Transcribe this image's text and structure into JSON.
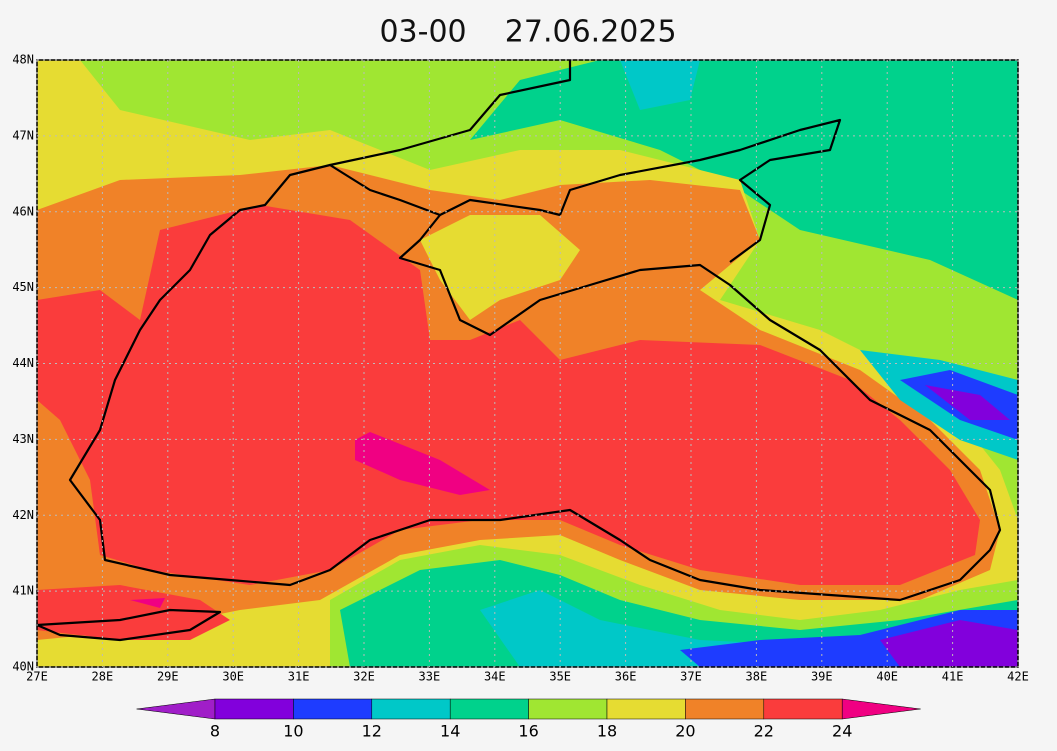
{
  "title": "03-00    27.06.2025",
  "map": {
    "xlim": [
      27,
      42
    ],
    "ylim": [
      40,
      48
    ],
    "xticks": [
      {
        "value": 27,
        "label": "27E"
      },
      {
        "value": 28,
        "label": "28E"
      },
      {
        "value": 29,
        "label": "29E"
      },
      {
        "value": 30,
        "label": "30E"
      },
      {
        "value": 31,
        "label": "31E"
      },
      {
        "value": 32,
        "label": "32E"
      },
      {
        "value": 33,
        "label": "33E"
      },
      {
        "value": 34,
        "label": "34E"
      },
      {
        "value": 35,
        "label": "35E"
      },
      {
        "value": 36,
        "label": "36E"
      },
      {
        "value": 37,
        "label": "37E"
      },
      {
        "value": 38,
        "label": "38E"
      },
      {
        "value": 39,
        "label": "39E"
      },
      {
        "value": 40,
        "label": "40E"
      },
      {
        "value": 41,
        "label": "41E"
      },
      {
        "value": 42,
        "label": "42E"
      }
    ],
    "yticks": [
      {
        "value": 40,
        "label": "40N"
      },
      {
        "value": 41,
        "label": "41N"
      },
      {
        "value": 42,
        "label": "42N"
      },
      {
        "value": 43,
        "label": "43N"
      },
      {
        "value": 44,
        "label": "44N"
      },
      {
        "value": 45,
        "label": "45N"
      },
      {
        "value": 46,
        "label": "46N"
      },
      {
        "value": 47,
        "label": "47N"
      },
      {
        "value": 48,
        "label": "48N"
      }
    ],
    "grid": true
  },
  "colorbar": {
    "levels": [
      8,
      10,
      12,
      14,
      16,
      18,
      20,
      22,
      24
    ],
    "colors": [
      "#a01ec8",
      "#8200dc",
      "#1e3cff",
      "#00c8c8",
      "#00d28c",
      "#a0e632",
      "#e6dc32",
      "#f08228",
      "#fa3c3c",
      "#f00082"
    ]
  }
}
